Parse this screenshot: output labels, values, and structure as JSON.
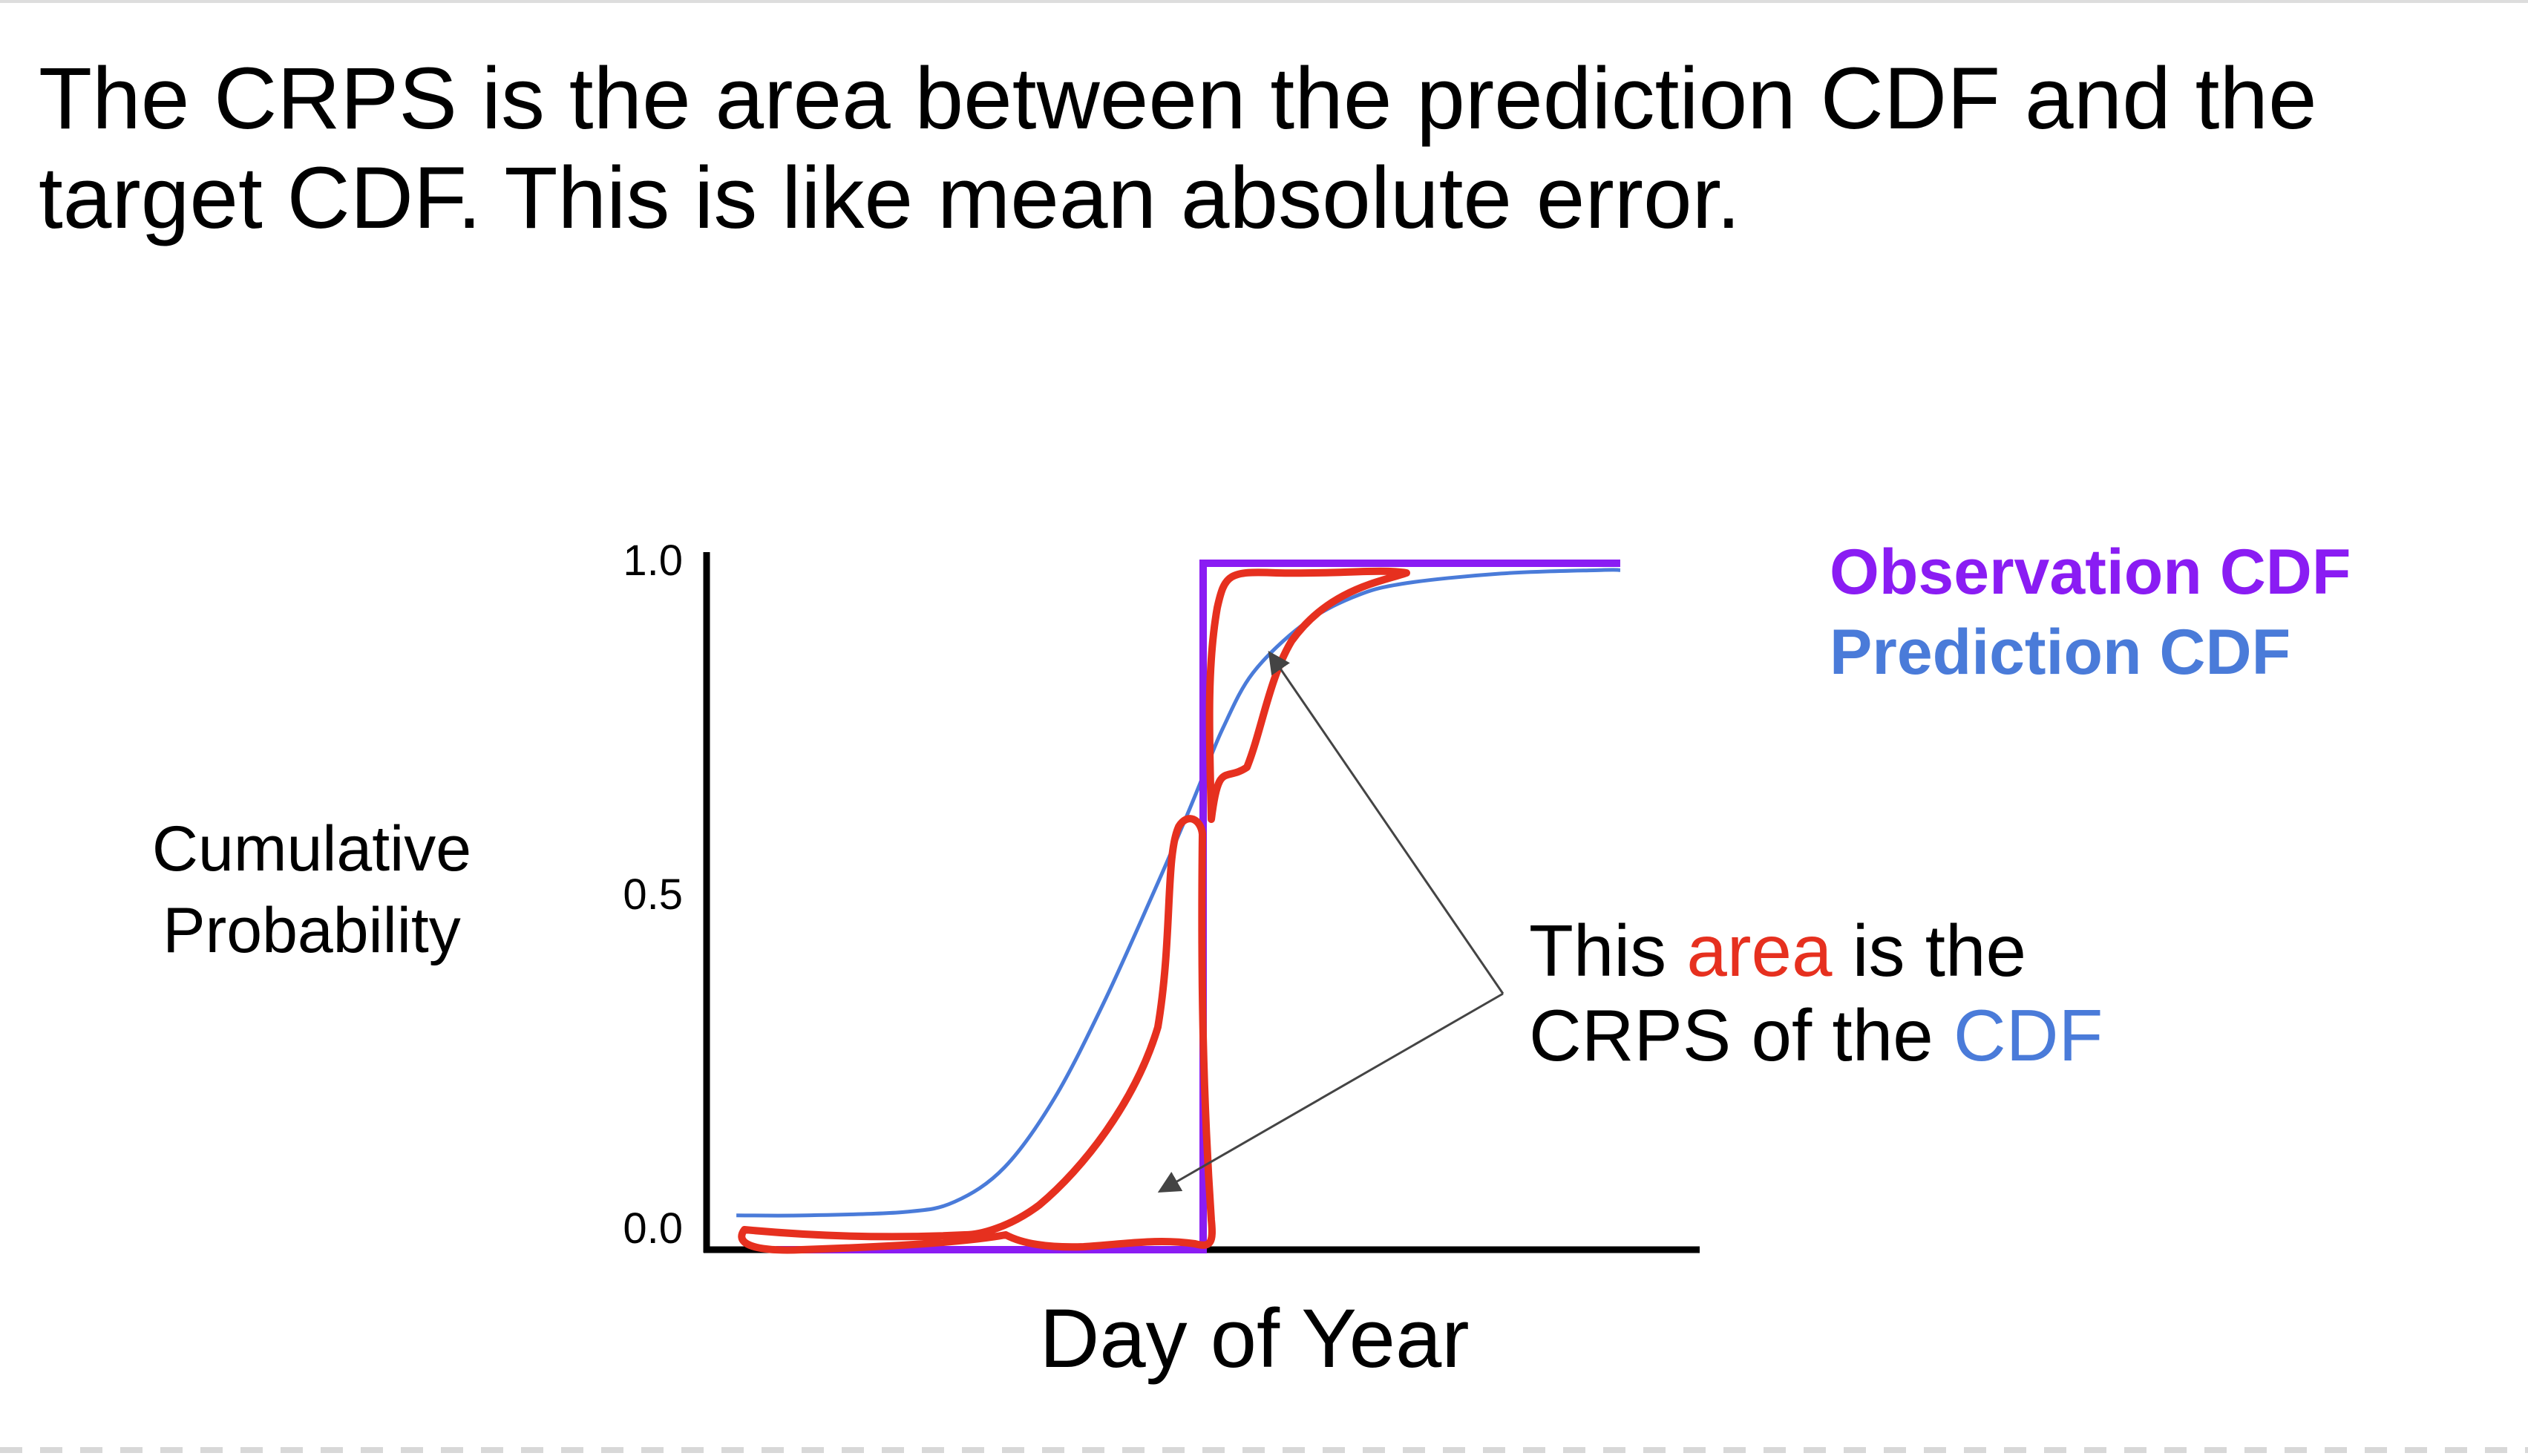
{
  "slide": {
    "title": "The CRPS is the area between the prediction CDF and the target CDF. This is like mean absolute error."
  },
  "colors": {
    "observation": "#8a1cf3",
    "prediction": "#4a7bd9",
    "area": "#e6301f",
    "axis": "#000000",
    "arrow": "#444444"
  },
  "annotation": {
    "part1": "This ",
    "highlight_area": "area",
    "part2": " is the",
    "part3": "CRPS of the ",
    "highlight_cdf": "CDF"
  },
  "chart_data": {
    "type": "line",
    "title": "",
    "xlabel": "Day of Year",
    "ylabel": "Cumulative Probability",
    "ylim": [
      0,
      1
    ],
    "yticks": [
      "0.0",
      "0.5",
      "1.0"
    ],
    "grid": false,
    "legend_position": "top-right",
    "series": [
      {
        "name": "Observation CDF",
        "color": "#8a1cf3",
        "x": [
          0.07,
          0.5,
          0.5,
          0.92
        ],
        "y": [
          0.0,
          0.0,
          1.0,
          1.0
        ]
      },
      {
        "name": "Prediction CDF",
        "color": "#4a7bd9",
        "x": [
          0.03,
          0.1,
          0.2,
          0.25,
          0.3,
          0.35,
          0.4,
          0.45,
          0.48,
          0.5,
          0.52,
          0.55,
          0.6,
          0.65,
          0.7,
          0.8,
          0.9,
          0.92
        ],
        "y": [
          0.05,
          0.05,
          0.055,
          0.07,
          0.12,
          0.22,
          0.36,
          0.52,
          0.62,
          0.69,
          0.76,
          0.84,
          0.91,
          0.95,
          0.97,
          0.985,
          0.99,
          0.99
        ]
      }
    ]
  }
}
